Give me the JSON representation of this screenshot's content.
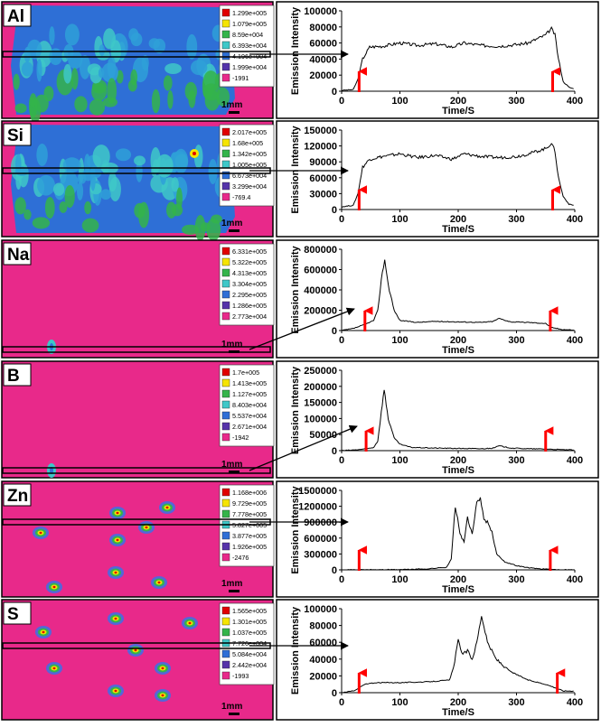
{
  "accent_colors": {
    "map_background": "#e8298a",
    "arrow": "#ff0000",
    "legend_scale": [
      "#e00000",
      "#f5e400",
      "#34b44a",
      "#3ec8c8",
      "#2e6fd6",
      "#5533aa",
      "#e8298a"
    ]
  },
  "scale_bar_label": "1mm",
  "panels": [
    {
      "element": "Al",
      "legend": [
        "1.299e+005",
        "1.079e+005",
        "8.59e+004",
        "6.393e+004",
        "4.196e+004",
        "1.999e+004",
        "-1991"
      ],
      "chart_data": {
        "type": "line",
        "xlabel": "Time/S",
        "ylabel": "Emission Intensity",
        "xlim": [
          0,
          400
        ],
        "ylim": [
          0,
          100000
        ],
        "xticks": [
          0,
          100,
          200,
          300,
          400
        ],
        "yticks": [
          0,
          20000,
          40000,
          60000,
          80000,
          100000
        ],
        "ytick_labels": [
          "0",
          "20000",
          "40000",
          "60000",
          "80000",
          "100000"
        ],
        "x": [
          0,
          20,
          28,
          36,
          48,
          70,
          100,
          130,
          160,
          190,
          210,
          240,
          270,
          300,
          320,
          350,
          360,
          366,
          372,
          380,
          390,
          398
        ],
        "y": [
          1000,
          2000,
          15000,
          40000,
          55000,
          56000,
          60000,
          57000,
          59000,
          55000,
          60000,
          57000,
          56000,
          58000,
          60000,
          70000,
          78000,
          70000,
          40000,
          12000,
          5000,
          3000
        ],
        "arrows_at": [
          30,
          362
        ]
      }
    },
    {
      "element": "Si",
      "legend": [
        "2.017e+005",
        "1.68e+005",
        "1.342e+005",
        "1.005e+005",
        "6.673e+004",
        "3.299e+004",
        "-769.4"
      ],
      "chart_data": {
        "type": "line",
        "xlabel": "Time/S",
        "ylabel": "Emission Intensity",
        "xlim": [
          0,
          400
        ],
        "ylim": [
          0,
          150000
        ],
        "xticks": [
          0,
          100,
          200,
          300,
          400
        ],
        "yticks": [
          0,
          30000,
          60000,
          90000,
          120000,
          150000
        ],
        "ytick_labels": [
          "0",
          "30000",
          "60000",
          "90000",
          "120000",
          "150000"
        ],
        "x": [
          0,
          20,
          28,
          36,
          48,
          70,
          100,
          130,
          160,
          190,
          210,
          240,
          270,
          300,
          320,
          350,
          360,
          366,
          372,
          380,
          390,
          398
        ],
        "y": [
          5000,
          8000,
          30000,
          80000,
          95000,
          100000,
          105000,
          98000,
          102000,
          95000,
          105000,
          100000,
          98000,
          100000,
          105000,
          115000,
          125000,
          110000,
          60000,
          25000,
          10000,
          8000
        ],
        "arrows_at": [
          30,
          362
        ]
      }
    },
    {
      "element": "Na",
      "legend": [
        "6.331e+005",
        "5.322e+005",
        "4.313e+005",
        "3.304e+005",
        "2.295e+005",
        "1.286e+005",
        "2.773e+004"
      ],
      "chart_data": {
        "type": "line",
        "xlabel": "Time/S",
        "ylabel": "Emission Intensity",
        "xlim": [
          0,
          400
        ],
        "ylim": [
          0,
          800000
        ],
        "xticks": [
          0,
          100,
          200,
          300,
          400
        ],
        "yticks": [
          0,
          200000,
          400000,
          600000,
          800000
        ],
        "ytick_labels": [
          "0",
          "200000",
          "400000",
          "600000",
          "800000"
        ],
        "x": [
          0,
          20,
          40,
          55,
          62,
          68,
          74,
          80,
          90,
          100,
          130,
          160,
          200,
          240,
          260,
          270,
          290,
          320,
          350,
          360,
          380,
          398
        ],
        "y": [
          0,
          20000,
          60000,
          100000,
          200000,
          500000,
          700000,
          450000,
          200000,
          100000,
          80000,
          90000,
          85000,
          80000,
          90000,
          120000,
          85000,
          80000,
          70000,
          30000,
          10000,
          5000
        ],
        "arrows_at": [
          40,
          358
        ]
      }
    },
    {
      "element": "B",
      "legend": [
        "1.7e+005",
        "1.413e+005",
        "1.127e+005",
        "8.403e+004",
        "5.537e+004",
        "2.671e+004",
        "-1942"
      ],
      "chart_data": {
        "type": "line",
        "xlabel": "Time/S",
        "ylabel": "Emission Intensity",
        "xlim": [
          0,
          400
        ],
        "ylim": [
          0,
          250000
        ],
        "xticks": [
          0,
          100,
          200,
          300,
          400
        ],
        "yticks": [
          0,
          50000,
          100000,
          150000,
          200000,
          250000
        ],
        "ytick_labels": [
          "0",
          "50000",
          "100000",
          "150000",
          "200000",
          "250000"
        ],
        "x": [
          0,
          20,
          40,
          55,
          62,
          68,
          73,
          80,
          90,
          100,
          120,
          160,
          200,
          240,
          260,
          270,
          290,
          320,
          350,
          380,
          398
        ],
        "y": [
          0,
          2000,
          5000,
          10000,
          30000,
          120000,
          190000,
          100000,
          40000,
          20000,
          10000,
          8000,
          7000,
          6000,
          8000,
          15000,
          8000,
          6000,
          5000,
          3000,
          2000
        ],
        "arrows_at": [
          42,
          350
        ]
      }
    },
    {
      "element": "Zn",
      "legend": [
        "1.168e+006",
        "9.729e+005",
        "7.778e+005",
        "5.827e+005",
        "3.877e+005",
        "1.926e+005",
        "-2476"
      ],
      "chart_data": {
        "type": "line",
        "xlabel": "Time/S",
        "ylabel": "Emission Intensity",
        "xlim": [
          0,
          400
        ],
        "ylim": [
          0,
          1500000
        ],
        "xticks": [
          0,
          100,
          200,
          300,
          400
        ],
        "yticks": [
          0,
          300000,
          600000,
          900000,
          1200000,
          1500000
        ],
        "ytick_labels": [
          "0",
          "300000",
          "600000",
          "900000",
          "1200000",
          "1500000"
        ],
        "x": [
          0,
          100,
          150,
          180,
          188,
          195,
          203,
          210,
          216,
          224,
          232,
          238,
          244,
          250,
          258,
          266,
          280,
          300,
          320,
          340,
          370,
          398
        ],
        "y": [
          0,
          5000,
          20000,
          50000,
          200000,
          1200000,
          700000,
          500000,
          1000000,
          650000,
          1300000,
          1350000,
          950000,
          900000,
          700000,
          300000,
          150000,
          80000,
          40000,
          20000,
          5000,
          2000
        ],
        "arrows_at": [
          30,
          358
        ]
      }
    },
    {
      "element": "S",
      "legend": [
        "1.565e+005",
        "1.301e+005",
        "1.037e+005",
        "7.726e+004",
        "5.084e+004",
        "2.442e+004",
        "-1993"
      ],
      "chart_data": {
        "type": "line",
        "xlabel": "Time/S",
        "ylabel": "Emission Intensity",
        "xlim": [
          0,
          400
        ],
        "ylim": [
          0,
          100000
        ],
        "xticks": [
          0,
          100,
          200,
          300,
          400
        ],
        "yticks": [
          0,
          20000,
          40000,
          60000,
          80000,
          100000
        ],
        "ytick_labels": [
          "0",
          "20000",
          "40000",
          "60000",
          "80000",
          "100000"
        ],
        "x": [
          0,
          20,
          30,
          40,
          60,
          100,
          150,
          185,
          192,
          200,
          208,
          216,
          224,
          232,
          240,
          250,
          265,
          290,
          320,
          350,
          370,
          380,
          398
        ],
        "y": [
          0,
          2000,
          6000,
          10000,
          12000,
          12000,
          13000,
          15000,
          30000,
          62000,
          45000,
          50000,
          40000,
          60000,
          92000,
          60000,
          40000,
          25000,
          15000,
          10000,
          5000,
          2000,
          2000
        ],
        "arrows_at": [
          30,
          370
        ]
      }
    }
  ]
}
